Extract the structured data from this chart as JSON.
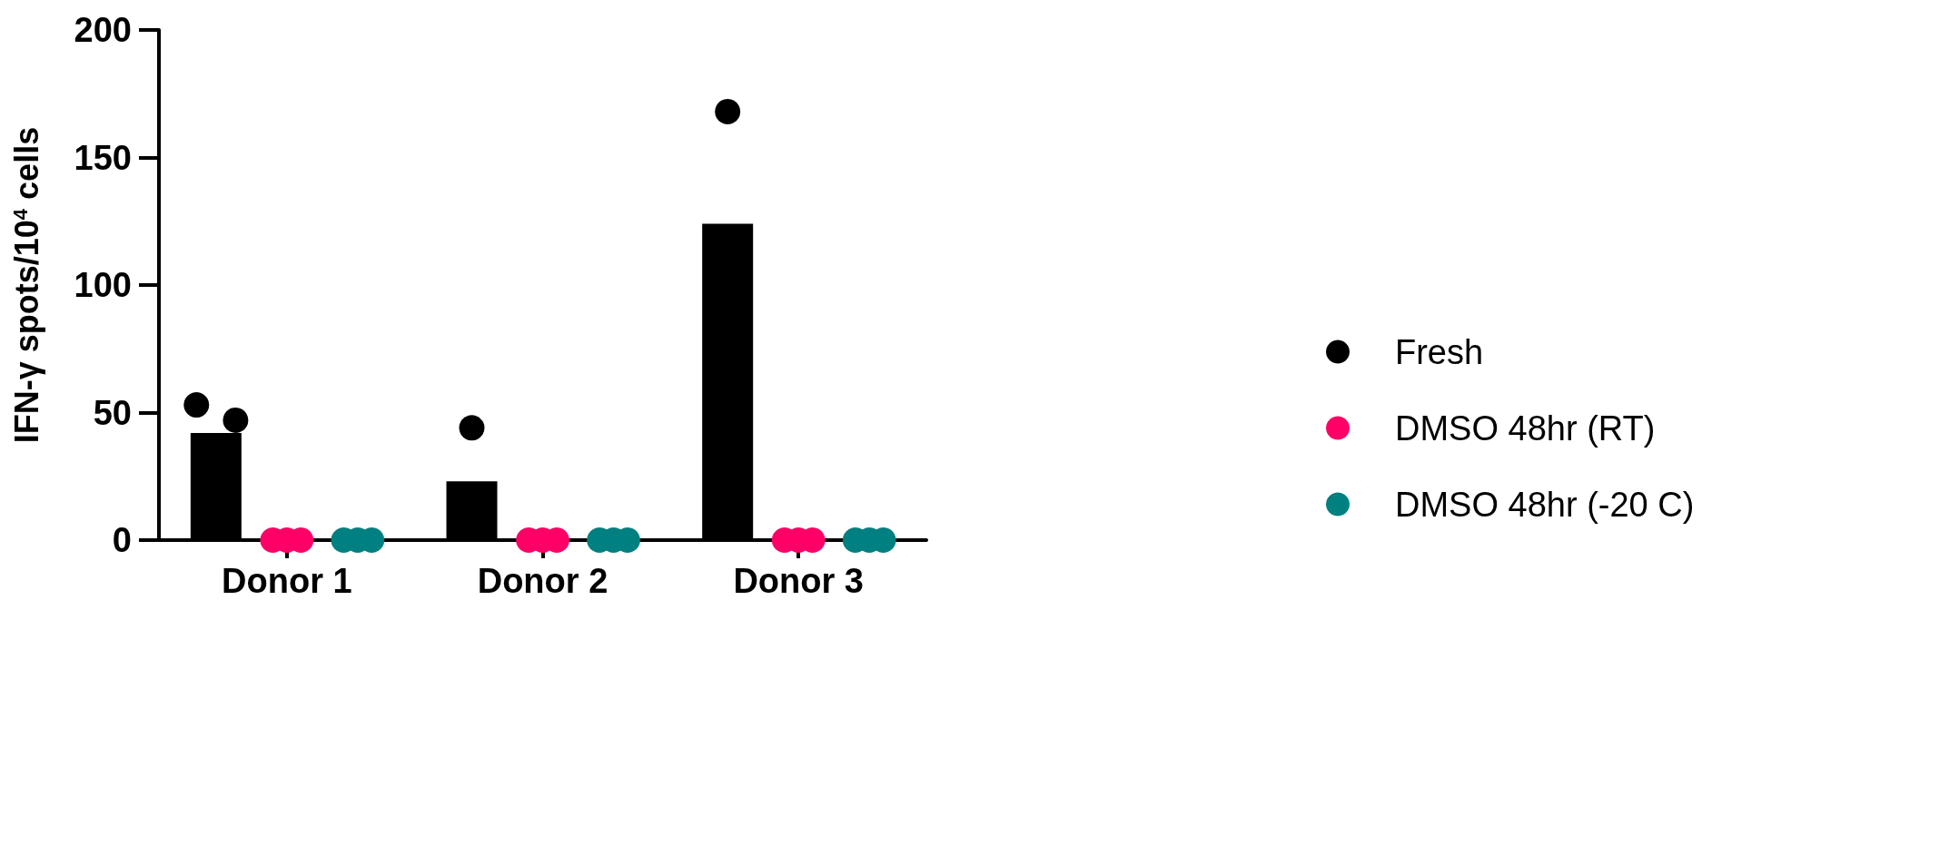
{
  "chart_data": {
    "type": "bar",
    "ylabel": "IFN-γ spots/10$^{4}$ cells",
    "categories": [
      "Donor 1",
      "Donor 2",
      "Donor 3"
    ],
    "series": [
      {
        "name": "Fresh",
        "color": "#000000",
        "values": [
          42,
          23,
          124
        ]
      },
      {
        "type": "scatter",
        "color": "#000000",
        "x": [
          "Donor 1",
          "Donor 1",
          "Donor 2",
          "Donor 3"
        ],
        "values": [
          53,
          47,
          44,
          168
        ]
      },
      {
        "type": "scatter",
        "name": "DMSO 48hr (RT)",
        "color": "#ff0066",
        "x": [
          "Donor 1",
          "Donor 1",
          "Donor 1",
          "Donor 2",
          "Donor 2",
          "Donor 2",
          "Donor 3",
          "Donor 3",
          "Donor 3"
        ],
        "values": [
          0,
          0,
          0,
          0,
          0,
          0,
          0,
          0,
          0
        ]
      },
      {
        "type": "scatter",
        "name": "DMSO 48hr (-20 C)",
        "color": "#008080",
        "x": [
          "Donor 1",
          "Donor 1",
          "Donor 1",
          "Donor 2",
          "Donor 2",
          "Donor 2",
          "Donor 3",
          "Donor 3",
          "Donor 3"
        ],
        "values": [
          0,
          0,
          0,
          0,
          0,
          0,
          0,
          0,
          0
        ]
      }
    ],
    "ylim": [
      0,
      200
    ],
    "yticks": [
      0,
      50,
      100,
      150,
      200
    ],
    "grid": false,
    "legend": "right",
    "marker": "circle"
  }
}
